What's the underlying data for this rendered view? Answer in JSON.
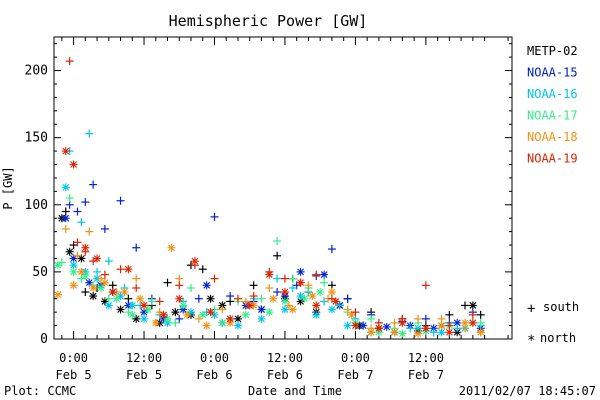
{
  "chart_data": {
    "type": "scatter",
    "title": "Hemispheric Power [GW]",
    "ylabel": "P [GW]",
    "xlabel": "Date and Time",
    "ylim": [
      0,
      225
    ],
    "yticks": [
      0,
      50,
      100,
      150,
      200
    ],
    "xlim_hours": [
      -5,
      112
    ],
    "xticks": [
      {
        "hour": 0,
        "time": "0:00",
        "date": "Feb 5"
      },
      {
        "hour": 18,
        "time": "12:00",
        "date": "Feb 5"
      },
      {
        "hour": 36,
        "time": "0:00",
        "date": "Feb 6"
      },
      {
        "hour": 54,
        "time": "12:00",
        "date": "Feb 6"
      },
      {
        "hour": 72,
        "time": "0:00",
        "date": "Feb 7"
      },
      {
        "hour": 90,
        "time": "12:00",
        "date": "Feb 7"
      }
    ],
    "marker_legend": {
      "south": "south",
      "north": "north",
      "south_symbol": "+",
      "north_symbol": "*"
    },
    "footer_left": "Plot: CCMC",
    "footer_right": "2011/02/07 18:45:07",
    "series": [
      {
        "name": "METP-02",
        "color": "#000000",
        "south": [
          [
            -2,
            95
          ],
          [
            0,
            70
          ],
          [
            3,
            35
          ],
          [
            6,
            38
          ],
          [
            10,
            40
          ],
          [
            14,
            30
          ],
          [
            20,
            25
          ],
          [
            24,
            42
          ],
          [
            30,
            55
          ],
          [
            33,
            52
          ],
          [
            40,
            28
          ],
          [
            46,
            40
          ],
          [
            52,
            62
          ],
          [
            56,
            45
          ],
          [
            60,
            35
          ],
          [
            66,
            40
          ],
          [
            70,
            30
          ],
          [
            76,
            20
          ],
          [
            84,
            15
          ],
          [
            90,
            10
          ],
          [
            96,
            18
          ],
          [
            100,
            25
          ],
          [
            104,
            18
          ]
        ],
        "north": [
          [
            -3,
            90
          ],
          [
            -1,
            65
          ],
          [
            2,
            60
          ],
          [
            5,
            32
          ],
          [
            8,
            28
          ],
          [
            12,
            22
          ],
          [
            16,
            15
          ],
          [
            22,
            12
          ],
          [
            26,
            20
          ],
          [
            30,
            18
          ],
          [
            35,
            30
          ],
          [
            38,
            25
          ],
          [
            42,
            15
          ],
          [
            48,
            22
          ],
          [
            54,
            30
          ],
          [
            58,
            28
          ],
          [
            62,
            20
          ],
          [
            68,
            25
          ],
          [
            73,
            10
          ],
          [
            78,
            8
          ],
          [
            82,
            5
          ],
          [
            88,
            6
          ],
          [
            94,
            10
          ],
          [
            98,
            5
          ],
          [
            102,
            25
          ]
        ]
      },
      {
        "name": "NOAA-15",
        "color": "#0022cc",
        "south": [
          [
            -1,
            100
          ],
          [
            1,
            95
          ],
          [
            3,
            102
          ],
          [
            5,
            115
          ],
          [
            8,
            82
          ],
          [
            12,
            103
          ],
          [
            16,
            68
          ],
          [
            20,
            30
          ],
          [
            27,
            15
          ],
          [
            32,
            30
          ],
          [
            36,
            91
          ],
          [
            40,
            32
          ],
          [
            46,
            28
          ],
          [
            52,
            35
          ],
          [
            57,
            40
          ],
          [
            62,
            47
          ],
          [
            66,
            67
          ],
          [
            70,
            30
          ],
          [
            76,
            18
          ],
          [
            84,
            13
          ],
          [
            90,
            15
          ],
          [
            96,
            12
          ],
          [
            102,
            20
          ]
        ],
        "north": [
          [
            -2,
            90
          ],
          [
            0,
            60
          ],
          [
            4,
            42
          ],
          [
            7,
            40
          ],
          [
            10,
            35
          ],
          [
            14,
            25
          ],
          [
            18,
            20
          ],
          [
            23,
            15
          ],
          [
            28,
            22
          ],
          [
            34,
            40
          ],
          [
            38,
            12
          ],
          [
            44,
            25
          ],
          [
            48,
            22
          ],
          [
            54,
            32
          ],
          [
            58,
            50
          ],
          [
            64,
            48
          ],
          [
            68,
            25
          ],
          [
            74,
            10
          ],
          [
            80,
            9
          ],
          [
            86,
            10
          ],
          [
            92,
            8
          ],
          [
            98,
            12
          ],
          [
            104,
            8
          ]
        ]
      },
      {
        "name": "NOAA-16",
        "color": "#00c4e8",
        "south": [
          [
            -1,
            140
          ],
          [
            2,
            87
          ],
          [
            4,
            153
          ],
          [
            6,
            50
          ],
          [
            9,
            58
          ],
          [
            13,
            38
          ],
          [
            17,
            25
          ],
          [
            22,
            18
          ],
          [
            28,
            28
          ],
          [
            34,
            20
          ],
          [
            40,
            15
          ],
          [
            46,
            30
          ],
          [
            52,
            45
          ],
          [
            56,
            38
          ],
          [
            60,
            35
          ],
          [
            64,
            28
          ],
          [
            68,
            25
          ],
          [
            72,
            15
          ],
          [
            78,
            12
          ],
          [
            86,
            8
          ],
          [
            92,
            5
          ],
          [
            98,
            8
          ],
          [
            104,
            10
          ]
        ],
        "north": [
          [
            -2,
            113
          ],
          [
            0,
            55
          ],
          [
            3,
            50
          ],
          [
            6,
            45
          ],
          [
            9,
            25
          ],
          [
            12,
            32
          ],
          [
            15,
            25
          ],
          [
            18,
            15
          ],
          [
            24,
            12
          ],
          [
            30,
            20
          ],
          [
            36,
            18
          ],
          [
            42,
            10
          ],
          [
            48,
            15
          ],
          [
            54,
            22
          ],
          [
            58,
            32
          ],
          [
            62,
            18
          ],
          [
            66,
            22
          ],
          [
            70,
            10
          ],
          [
            76,
            5
          ],
          [
            82,
            5
          ],
          [
            88,
            8
          ],
          [
            94,
            5
          ],
          [
            100,
            8
          ]
        ]
      },
      {
        "name": "NOAA-17",
        "color": "#33ee88",
        "south": [
          [
            -3,
            57
          ],
          [
            -1,
            105
          ],
          [
            2,
            45
          ],
          [
            5,
            40
          ],
          [
            9,
            30
          ],
          [
            14,
            20
          ],
          [
            20,
            28
          ],
          [
            26,
            12
          ],
          [
            30,
            38
          ],
          [
            36,
            22
          ],
          [
            42,
            28
          ],
          [
            48,
            30
          ],
          [
            52,
            73
          ],
          [
            56,
            45
          ],
          [
            60,
            38
          ],
          [
            64,
            42
          ],
          [
            70,
            20
          ],
          [
            76,
            15
          ],
          [
            82,
            8
          ],
          [
            88,
            12
          ],
          [
            94,
            10
          ],
          [
            100,
            8
          ],
          [
            104,
            12
          ]
        ],
        "north": [
          [
            -4,
            55
          ],
          [
            0,
            50
          ],
          [
            3,
            47
          ],
          [
            7,
            38
          ],
          [
            11,
            30
          ],
          [
            15,
            18
          ],
          [
            19,
            22
          ],
          [
            24,
            15
          ],
          [
            28,
            25
          ],
          [
            33,
            18
          ],
          [
            38,
            12
          ],
          [
            44,
            18
          ],
          [
            50,
            20
          ],
          [
            54,
            28
          ],
          [
            59,
            30
          ],
          [
            63,
            35
          ],
          [
            67,
            28
          ],
          [
            72,
            12
          ],
          [
            78,
            5
          ],
          [
            84,
            4
          ],
          [
            90,
            6
          ],
          [
            96,
            10
          ],
          [
            102,
            12
          ]
        ]
      },
      {
        "name": "NOAA-18",
        "color": "#f0920f",
        "south": [
          [
            -2,
            82
          ],
          [
            1,
            62
          ],
          [
            4,
            80
          ],
          [
            7,
            45
          ],
          [
            11,
            35
          ],
          [
            16,
            45
          ],
          [
            22,
            20
          ],
          [
            27,
            45
          ],
          [
            32,
            15
          ],
          [
            38,
            22
          ],
          [
            44,
            28
          ],
          [
            50,
            38
          ],
          [
            55,
            25
          ],
          [
            60,
            40
          ],
          [
            65,
            30
          ],
          [
            70,
            22
          ],
          [
            76,
            8
          ],
          [
            82,
            12
          ],
          [
            88,
            15
          ],
          [
            94,
            15
          ],
          [
            100,
            8
          ],
          [
            104,
            5
          ]
        ],
        "north": [
          [
            -4,
            33
          ],
          [
            0,
            40
          ],
          [
            2,
            50
          ],
          [
            5,
            38
          ],
          [
            8,
            42
          ],
          [
            13,
            35
          ],
          [
            17,
            30
          ],
          [
            21,
            12
          ],
          [
            25,
            68
          ],
          [
            29,
            18
          ],
          [
            34,
            10
          ],
          [
            40,
            12
          ],
          [
            46,
            25
          ],
          [
            51,
            30
          ],
          [
            56,
            22
          ],
          [
            61,
            32
          ],
          [
            66,
            35
          ],
          [
            71,
            18
          ],
          [
            76,
            5
          ],
          [
            82,
            5
          ],
          [
            88,
            4
          ],
          [
            94,
            10
          ],
          [
            100,
            12
          ],
          [
            104,
            5
          ]
        ]
      },
      {
        "name": "NOAA-19",
        "color": "#dd2200",
        "south": [
          [
            -1,
            207
          ],
          [
            1,
            72
          ],
          [
            3,
            65
          ],
          [
            5,
            58
          ],
          [
            8,
            48
          ],
          [
            12,
            52
          ],
          [
            16,
            38
          ],
          [
            22,
            28
          ],
          [
            27,
            40
          ],
          [
            31,
            55
          ],
          [
            36,
            45
          ],
          [
            42,
            30
          ],
          [
            46,
            32
          ],
          [
            50,
            50
          ],
          [
            54,
            45
          ],
          [
            58,
            42
          ],
          [
            62,
            48
          ],
          [
            66,
            30
          ],
          [
            72,
            20
          ],
          [
            78,
            12
          ],
          [
            84,
            15
          ],
          [
            90,
            40
          ],
          [
            96,
            10
          ],
          [
            102,
            18
          ]
        ],
        "north": [
          [
            -2,
            140
          ],
          [
            0,
            130
          ],
          [
            3,
            68
          ],
          [
            6,
            60
          ],
          [
            10,
            35
          ],
          [
            14,
            52
          ],
          [
            18,
            25
          ],
          [
            23,
            18
          ],
          [
            27,
            30
          ],
          [
            31,
            58
          ],
          [
            35,
            20
          ],
          [
            40,
            15
          ],
          [
            45,
            25
          ],
          [
            50,
            48
          ],
          [
            54,
            35
          ],
          [
            58,
            42
          ],
          [
            62,
            25
          ],
          [
            67,
            28
          ],
          [
            72,
            10
          ],
          [
            78,
            8
          ],
          [
            84,
            12
          ],
          [
            90,
            8
          ],
          [
            96,
            5
          ],
          [
            102,
            12
          ]
        ]
      }
    ]
  }
}
